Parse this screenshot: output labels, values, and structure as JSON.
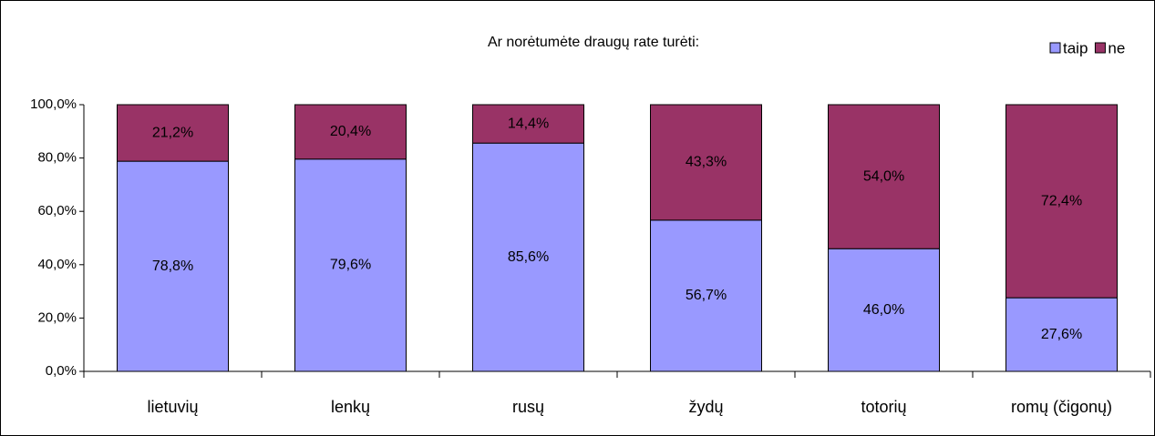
{
  "chart_data": {
    "type": "stacked_bar",
    "title": "Ar norėtumėte draugų rate turėti:",
    "categories": [
      "lietuvių",
      "lenkų",
      "rusų",
      "žydų",
      "totorių",
      "romų (čigonų)"
    ],
    "series": [
      {
        "name": "taip",
        "color": "#9999ff",
        "values": [
          78.8,
          79.6,
          85.6,
          56.7,
          46.0,
          27.6
        ],
        "value_labels": [
          "78,8%",
          "79,6%",
          "85,6%",
          "56,7%",
          "46,0%",
          "27,6%"
        ]
      },
      {
        "name": "ne",
        "color": "#993366",
        "values": [
          21.2,
          20.4,
          14.4,
          43.3,
          54.0,
          72.4
        ],
        "value_labels": [
          "21,2%",
          "20,4%",
          "14,4%",
          "43,3%",
          "54,0%",
          "72,4%"
        ]
      }
    ],
    "ylim": [
      0,
      100
    ],
    "yticks": [
      {
        "value": 0,
        "label": "0,0%"
      },
      {
        "value": 20,
        "label": "20,0%"
      },
      {
        "value": 40,
        "label": "40,0%"
      },
      {
        "value": 60,
        "label": "60,0%"
      },
      {
        "value": 80,
        "label": "80,0%"
      },
      {
        "value": 100,
        "label": "100,0%"
      }
    ],
    "legend": "top-right"
  }
}
